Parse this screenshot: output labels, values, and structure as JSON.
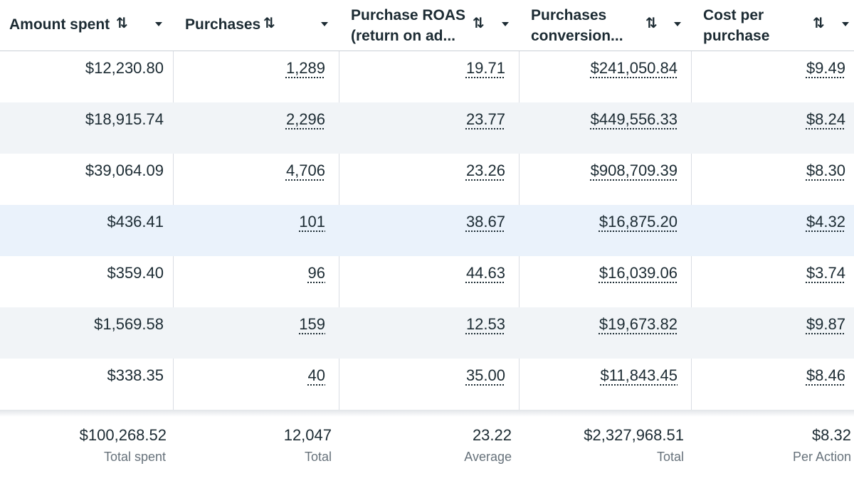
{
  "columns": [
    {
      "title_line1": "Amount spent",
      "title_line2": "",
      "sort_icon": "sort-arrows-icon",
      "menu_icon": "caret-down-icon"
    },
    {
      "title_line1": "Purchases",
      "title_line2": "",
      "sort_icon": "sort-arrows-icon",
      "menu_icon": "caret-down-icon"
    },
    {
      "title_line1": "Purchase ROAS",
      "title_line2": "(return on ad...",
      "sort_icon": "sort-arrows-icon",
      "menu_icon": "caret-down-icon"
    },
    {
      "title_line1": "Purchases",
      "title_line2": "conversion...",
      "sort_icon": "sort-arrows-icon",
      "menu_icon": "caret-down-icon"
    },
    {
      "title_line1": "Cost per",
      "title_line2": "purchase",
      "sort_icon": "sort-arrows-icon",
      "menu_icon": "caret-down-icon"
    }
  ],
  "sort_glyph": "⇅",
  "rows": [
    [
      "$12,230.80",
      "1,289",
      "19.71",
      "$241,050.84",
      "$9.49"
    ],
    [
      "$18,915.74",
      "2,296",
      "23.77",
      "$449,556.33",
      "$8.24"
    ],
    [
      "$39,064.09",
      "4,706",
      "23.26",
      "$908,709.39",
      "$8.30"
    ],
    [
      "$436.41",
      "101",
      "38.67",
      "$16,875.20",
      "$4.32"
    ],
    [
      "$359.40",
      "96",
      "44.63",
      "$16,039.06",
      "$3.74"
    ],
    [
      "$1,569.58",
      "159",
      "12.53",
      "$19,673.82",
      "$9.87"
    ],
    [
      "$338.35",
      "40",
      "35.00",
      "$11,843.45",
      "$8.46"
    ]
  ],
  "totals": [
    {
      "value": "$100,268.52",
      "label": "Total spent"
    },
    {
      "value": "12,047",
      "label": "Total"
    },
    {
      "value": "23.22",
      "label": "Average"
    },
    {
      "value": "$2,327,968.51",
      "label": "Total"
    },
    {
      "value": "$8.32",
      "label": "Per Action"
    }
  ],
  "colors": {
    "row_alt": "#f1f4f7",
    "row_highlight": "#eaf2fb",
    "text": "#1c2b33",
    "muted": "#67727b"
  }
}
